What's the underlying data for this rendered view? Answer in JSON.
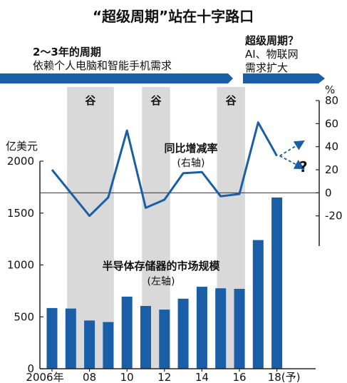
{
  "chart_data": {
    "type": "bar",
    "title": "“超级周期”站在十字路口",
    "banner_left": {
      "line1": "2～3年的周期",
      "line2": "依赖个人电脑和智能手机需求"
    },
    "banner_right": {
      "line1": "超级周期？",
      "line2": "AI、物联网",
      "line3": "需求扩大"
    },
    "trough_label": "谷",
    "trough_periods": [
      [
        "2007",
        "2009"
      ],
      [
        "2011",
        "2012"
      ],
      [
        "2015",
        "2016"
      ]
    ],
    "x": [
      "2006",
      "2007",
      "2008",
      "2009",
      "2010",
      "2011",
      "2012",
      "2013",
      "2014",
      "2015",
      "2016",
      "2017",
      "2018"
    ],
    "x_tick_labels": [
      {
        "x": "2006",
        "label": "2006年"
      },
      {
        "x": "2008",
        "label": "08"
      },
      {
        "x": "2010",
        "label": "10"
      },
      {
        "x": "2012",
        "label": "12"
      },
      {
        "x": "2014",
        "label": "14"
      },
      {
        "x": "2016",
        "label": "16"
      },
      {
        "x": "2018",
        "label": "18(予)"
      }
    ],
    "y_left": {
      "unit": "亿美元",
      "ticks": [
        "0",
        "500",
        "1000",
        "1500",
        "2000"
      ],
      "range": [
        0,
        2000
      ]
    },
    "y_right": {
      "unit": "%",
      "ticks": [
        "-20",
        "0",
        "20",
        "40",
        "60",
        "80"
      ],
      "range": [
        -40,
        80
      ]
    },
    "series": [
      {
        "name": "半导体存储器的市场规模",
        "axis_note": "(左轴)",
        "type": "bar",
        "color": "#1a5ea8",
        "values": [
          585,
          580,
          465,
          450,
          695,
          605,
          570,
          675,
          790,
          775,
          770,
          1240,
          1650
        ]
      },
      {
        "name": "同比增减率",
        "axis_note": "(右轴)",
        "type": "line",
        "color": "#1a5ea8",
        "values": [
          20,
          0,
          -20,
          -4,
          54,
          -13,
          -6,
          17,
          18,
          -3,
          -1,
          61,
          32
        ]
      }
    ],
    "projection": {
      "mark": "?",
      "up_to": 45,
      "down_to": 21
    },
    "colors": {
      "trough_band": "#d9d9d9",
      "axis": "#222222",
      "banner": "#1a5ea8"
    }
  }
}
